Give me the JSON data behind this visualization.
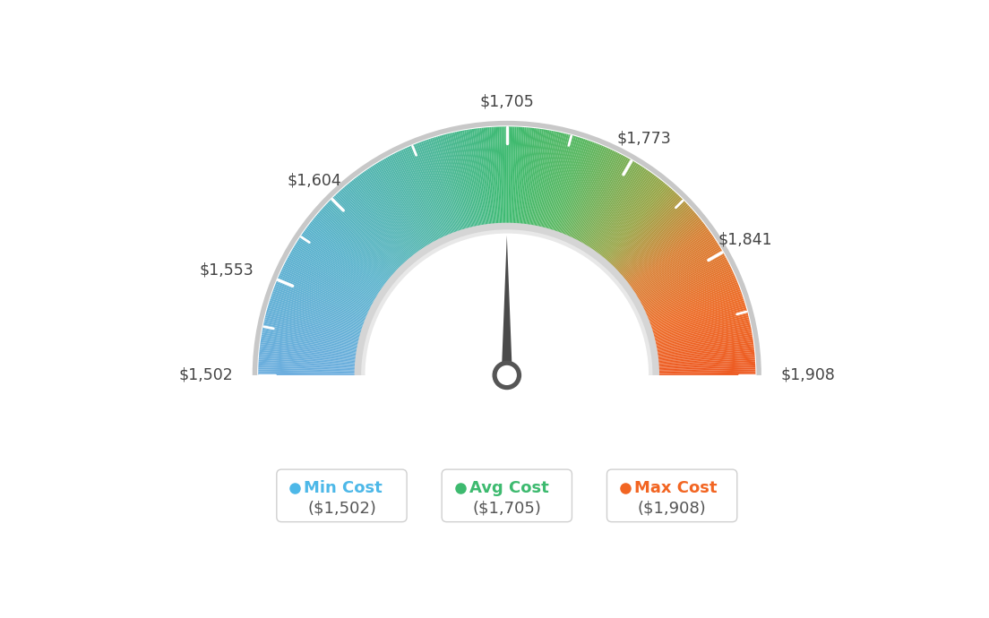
{
  "min_val": 1502,
  "max_val": 1908,
  "avg_val": 1705,
  "tick_labels": [
    "$1,502",
    "$1,553",
    "$1,604",
    "$1,705",
    "$1,773",
    "$1,841",
    "$1,908"
  ],
  "tick_values": [
    1502,
    1553,
    1604,
    1705,
    1773,
    1841,
    1908
  ],
  "legend": [
    {
      "label": "Min Cost",
      "value": "($1,502)",
      "color": "#4db8e8"
    },
    {
      "label": "Avg Cost",
      "value": "($1,705)",
      "color": "#3dba6f"
    },
    {
      "label": "Max Cost",
      "value": "($1,908)",
      "color": "#f26522"
    }
  ],
  "background_color": "#ffffff",
  "color_stops": [
    [
      0.0,
      [
        0.42,
        0.68,
        0.87
      ]
    ],
    [
      0.2,
      [
        0.35,
        0.7,
        0.8
      ]
    ],
    [
      0.4,
      [
        0.3,
        0.72,
        0.6
      ]
    ],
    [
      0.5,
      [
        0.24,
        0.73,
        0.44
      ]
    ],
    [
      0.6,
      [
        0.35,
        0.72,
        0.38
      ]
    ],
    [
      0.72,
      [
        0.6,
        0.65,
        0.28
      ]
    ],
    [
      0.8,
      [
        0.85,
        0.5,
        0.2
      ]
    ],
    [
      0.9,
      [
        0.93,
        0.42,
        0.15
      ]
    ],
    [
      1.0,
      [
        0.93,
        0.35,
        0.13
      ]
    ]
  ]
}
